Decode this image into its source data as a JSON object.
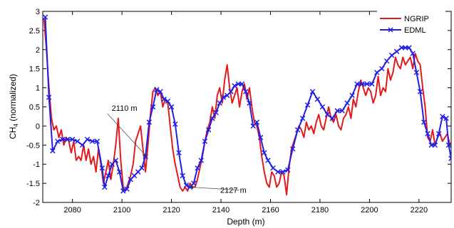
{
  "chart_data": {
    "type": "line",
    "xlabel": "Depth (m)",
    "ylabel_main": "CH",
    "ylabel_sub": "4",
    "ylabel_rest": " (normalized)",
    "xlim": [
      2068,
      2233
    ],
    "ylim": [
      -2,
      3
    ],
    "xticks": [
      2080,
      2100,
      2120,
      2140,
      2160,
      2180,
      2200,
      2220
    ],
    "yticks": [
      -2,
      -1.5,
      -1,
      -0.5,
      0,
      0.5,
      1,
      1.5,
      2,
      2.5,
      3
    ],
    "grid": false,
    "legend_position": "top-right",
    "series": [
      {
        "name": "NGRIP",
        "color": "#e31a1c",
        "marker": "none",
        "points": [
          [
            2068.5,
            2.8
          ],
          [
            2069.5,
            2.0
          ],
          [
            2070.5,
            1.0
          ],
          [
            2071.5,
            0.2
          ],
          [
            2072.5,
            -0.1
          ],
          [
            2073.5,
            0.0
          ],
          [
            2074.5,
            -0.3
          ],
          [
            2075.5,
            -0.1
          ],
          [
            2076.5,
            -0.5
          ],
          [
            2077.5,
            -0.3
          ],
          [
            2078.5,
            -0.4
          ],
          [
            2079.5,
            -0.7
          ],
          [
            2080.5,
            -0.4
          ],
          [
            2081.5,
            -0.9
          ],
          [
            2082.5,
            -0.8
          ],
          [
            2083.5,
            -0.9
          ],
          [
            2084.5,
            -0.5
          ],
          [
            2085.5,
            -0.9
          ],
          [
            2086.5,
            -0.6
          ],
          [
            2087.5,
            -1.0
          ],
          [
            2088.5,
            -0.8
          ],
          [
            2089.5,
            -1.2
          ],
          [
            2090.5,
            -0.6
          ],
          [
            2091.5,
            -1.0
          ],
          [
            2092.5,
            -1.5
          ],
          [
            2093.5,
            -1.2
          ],
          [
            2094.5,
            -0.9
          ],
          [
            2095.5,
            -1.4
          ],
          [
            2096.5,
            -1.0
          ],
          [
            2097.5,
            -0.5
          ],
          [
            2098.5,
            0.2
          ],
          [
            2099.5,
            -0.9
          ],
          [
            2100.5,
            -1.6
          ],
          [
            2101.5,
            -1.7
          ],
          [
            2102.5,
            -1.5
          ],
          [
            2103.5,
            -1.3
          ],
          [
            2104.5,
            -1.0
          ],
          [
            2105.5,
            -0.4
          ],
          [
            2106.5,
            -0.2
          ],
          [
            2107.5,
            0.0
          ],
          [
            2108.5,
            -0.6
          ],
          [
            2109.5,
            -1.2
          ],
          [
            2110.5,
            -0.5
          ],
          [
            2111.5,
            0.3
          ],
          [
            2112.5,
            0.9
          ],
          [
            2113.5,
            1.0
          ],
          [
            2114.5,
            0.8
          ],
          [
            2115.5,
            0.9
          ],
          [
            2116.5,
            0.5
          ],
          [
            2117.5,
            0.7
          ],
          [
            2118.5,
            0.6
          ],
          [
            2119.5,
            0.0
          ],
          [
            2120.5,
            -0.6
          ],
          [
            2121.5,
            -1.0
          ],
          [
            2122.5,
            -1.3
          ],
          [
            2123.5,
            -1.6
          ],
          [
            2124.5,
            -1.7
          ],
          [
            2125.5,
            -1.6
          ],
          [
            2126.5,
            -1.7
          ],
          [
            2127.5,
            -1.5
          ],
          [
            2128.5,
            -1.6
          ],
          [
            2129.5,
            -1.6
          ],
          [
            2130.5,
            -1.4
          ],
          [
            2131.5,
            -1.1
          ],
          [
            2132.5,
            -0.8
          ],
          [
            2133.5,
            -0.4
          ],
          [
            2134.5,
            -0.1
          ],
          [
            2135.5,
            0.1
          ],
          [
            2136.5,
            0.5
          ],
          [
            2137.5,
            0.2
          ],
          [
            2138.5,
            0.8
          ],
          [
            2139.5,
            1.0
          ],
          [
            2140.5,
            0.6
          ],
          [
            2141.5,
            1.2
          ],
          [
            2142.5,
            1.6
          ],
          [
            2143.5,
            1.0
          ],
          [
            2144.5,
            0.6
          ],
          [
            2145.5,
            0.8
          ],
          [
            2146.5,
            1.0
          ],
          [
            2147.5,
            0.5
          ],
          [
            2148.5,
            0.9
          ],
          [
            2149.5,
            1.1
          ],
          [
            2150.5,
            0.7
          ],
          [
            2151.5,
            1.0
          ],
          [
            2152.5,
            0.5
          ],
          [
            2153.5,
            0.1
          ],
          [
            2154.5,
            0.0
          ],
          [
            2155.5,
            -0.3
          ],
          [
            2156.5,
            -0.8
          ],
          [
            2157.5,
            -1.2
          ],
          [
            2158.5,
            -1.5
          ],
          [
            2159.5,
            -1.6
          ],
          [
            2160.5,
            -1.2
          ],
          [
            2161.5,
            -1.3
          ],
          [
            2162.5,
            -1.6
          ],
          [
            2163.5,
            -1.5
          ],
          [
            2164.5,
            -1.2
          ],
          [
            2165.5,
            -1.3
          ],
          [
            2166.5,
            -1.8
          ],
          [
            2167.5,
            -1.1
          ],
          [
            2168.5,
            -0.6
          ],
          [
            2169.5,
            -0.4
          ],
          [
            2170.5,
            -0.2
          ],
          [
            2171.5,
            0.0
          ],
          [
            2172.5,
            -0.1
          ],
          [
            2173.5,
            -0.3
          ],
          [
            2174.5,
            0.1
          ],
          [
            2175.5,
            -0.1
          ],
          [
            2176.5,
            0.0
          ],
          [
            2177.5,
            -0.2
          ],
          [
            2178.5,
            0.1
          ],
          [
            2179.5,
            0.3
          ],
          [
            2180.5,
            0.0
          ],
          [
            2181.5,
            -0.1
          ],
          [
            2182.5,
            0.2
          ],
          [
            2183.5,
            0.5
          ],
          [
            2184.5,
            0.2
          ],
          [
            2185.5,
            0.1
          ],
          [
            2186.5,
            0.3
          ],
          [
            2187.5,
            0.0
          ],
          [
            2188.5,
            -0.1
          ],
          [
            2189.5,
            0.2
          ],
          [
            2190.5,
            0.3
          ],
          [
            2191.5,
            0.5
          ],
          [
            2192.5,
            0.2
          ],
          [
            2193.5,
            0.7
          ],
          [
            2194.5,
            0.5
          ],
          [
            2195.5,
            0.9
          ],
          [
            2196.5,
            1.2
          ],
          [
            2197.5,
            1.0
          ],
          [
            2198.5,
            0.8
          ],
          [
            2199.5,
            1.0
          ],
          [
            2200.5,
            0.9
          ],
          [
            2201.5,
            0.6
          ],
          [
            2202.5,
            0.8
          ],
          [
            2203.5,
            1.3
          ],
          [
            2204.5,
            0.8
          ],
          [
            2205.5,
            1.0
          ],
          [
            2206.5,
            0.9
          ],
          [
            2207.5,
            1.5
          ],
          [
            2208.5,
            1.2
          ],
          [
            2209.5,
            1.4
          ],
          [
            2210.5,
            1.8
          ],
          [
            2211.5,
            1.6
          ],
          [
            2212.5,
            1.5
          ],
          [
            2213.5,
            1.8
          ],
          [
            2214.5,
            1.6
          ],
          [
            2215.5,
            1.7
          ],
          [
            2216.5,
            1.8
          ],
          [
            2217.5,
            1.5
          ],
          [
            2218.5,
            1.9
          ],
          [
            2219.5,
            1.7
          ],
          [
            2220.5,
            1.6
          ],
          [
            2221.5,
            1.0
          ],
          [
            2222.5,
            0.5
          ],
          [
            2223.5,
            -0.3
          ],
          [
            2224.5,
            -0.4
          ],
          [
            2225.5,
            -0.1
          ],
          [
            2226.5,
            -0.5
          ],
          [
            2227.5,
            -0.3
          ],
          [
            2228.5,
            -0.2
          ],
          [
            2229.5,
            -0.4
          ],
          [
            2230.5,
            -0.3
          ],
          [
            2231.5,
            -0.2
          ],
          [
            2232.5,
            -0.5
          ]
        ]
      },
      {
        "name": "EDML",
        "color": "#1f1fe6",
        "marker": "x",
        "points": [
          [
            2069,
            2.85
          ],
          [
            2070.5,
            0.75
          ],
          [
            2072,
            -0.65
          ],
          [
            2074,
            -0.4
          ],
          [
            2076,
            -0.35
          ],
          [
            2078,
            -0.35
          ],
          [
            2080,
            -0.35
          ],
          [
            2082,
            -0.4
          ],
          [
            2084,
            -0.5
          ],
          [
            2086,
            -0.35
          ],
          [
            2088,
            -0.4
          ],
          [
            2090,
            -0.4
          ],
          [
            2092,
            -1.1
          ],
          [
            2093,
            -1.6
          ],
          [
            2094.5,
            -1.3
          ],
          [
            2096,
            -1.0
          ],
          [
            2097.5,
            -0.9
          ],
          [
            2099,
            -1.2
          ],
          [
            2100.5,
            -1.7
          ],
          [
            2102,
            -1.65
          ],
          [
            2103.5,
            -1.4
          ],
          [
            2105,
            -1.3
          ],
          [
            2106.5,
            -1.2
          ],
          [
            2108,
            -1.1
          ],
          [
            2109.5,
            -0.8
          ],
          [
            2111,
            0.1
          ],
          [
            2112.5,
            0.5
          ],
          [
            2114,
            0.95
          ],
          [
            2115.5,
            0.9
          ],
          [
            2117,
            0.7
          ],
          [
            2118.5,
            0.65
          ],
          [
            2120,
            0.5
          ],
          [
            2121.5,
            0.05
          ],
          [
            2123,
            -0.7
          ],
          [
            2124.5,
            -1.3
          ],
          [
            2126,
            -1.55
          ],
          [
            2127.5,
            -1.6
          ],
          [
            2129,
            -1.5
          ],
          [
            2130.5,
            -1.1
          ],
          [
            2132,
            -0.9
          ],
          [
            2133.5,
            -0.4
          ],
          [
            2135,
            -0.1
          ],
          [
            2136.5,
            0.2
          ],
          [
            2138,
            0.35
          ],
          [
            2139.5,
            0.6
          ],
          [
            2141,
            0.75
          ],
          [
            2142.5,
            0.8
          ],
          [
            2144,
            0.9
          ],
          [
            2145.5,
            1.05
          ],
          [
            2147,
            1.1
          ],
          [
            2148.5,
            1.1
          ],
          [
            2150,
            0.9
          ],
          [
            2151.5,
            0.6
          ],
          [
            2153,
            0.0
          ],
          [
            2154.5,
            0.1
          ],
          [
            2156,
            -0.3
          ],
          [
            2157.5,
            -0.7
          ],
          [
            2159,
            -0.9
          ],
          [
            2161,
            -1.1
          ],
          [
            2163,
            -1.2
          ],
          [
            2165,
            -1.2
          ],
          [
            2167,
            -1.15
          ],
          [
            2169,
            -0.6
          ],
          [
            2171,
            -0.1
          ],
          [
            2173,
            0.2
          ],
          [
            2175,
            0.55
          ],
          [
            2177,
            0.9
          ],
          [
            2179,
            0.7
          ],
          [
            2181,
            0.5
          ],
          [
            2183,
            0.3
          ],
          [
            2185,
            0.2
          ],
          [
            2187,
            0.4
          ],
          [
            2189,
            0.4
          ],
          [
            2191,
            0.6
          ],
          [
            2193,
            0.8
          ],
          [
            2195,
            1.1
          ],
          [
            2197,
            1.1
          ],
          [
            2199,
            1.1
          ],
          [
            2201,
            1.1
          ],
          [
            2203,
            1.4
          ],
          [
            2205,
            1.5
          ],
          [
            2207,
            1.7
          ],
          [
            2209,
            1.85
          ],
          [
            2211,
            1.95
          ],
          [
            2213,
            2.05
          ],
          [
            2214.5,
            2.05
          ],
          [
            2216,
            2.05
          ],
          [
            2217.5,
            1.9
          ],
          [
            2219,
            1.4
          ],
          [
            2220.5,
            0.9
          ],
          [
            2222,
            0.1
          ],
          [
            2223.5,
            -0.2
          ],
          [
            2225,
            -0.5
          ],
          [
            2226.5,
            -0.5
          ],
          [
            2228,
            -0.2
          ],
          [
            2229.5,
            0.25
          ],
          [
            2231,
            0.2
          ],
          [
            2232,
            -0.5
          ],
          [
            2233,
            -0.85
          ]
        ]
      }
    ],
    "annotations": [
      {
        "text": "2110 m",
        "at": [
          2110,
          -0.8
        ],
        "text_at": [
          2101,
          0.4
        ]
      },
      {
        "text": "2127 m",
        "at": [
          2127.5,
          -1.6
        ],
        "text_at": [
          2145,
          -1.75
        ]
      }
    ]
  }
}
